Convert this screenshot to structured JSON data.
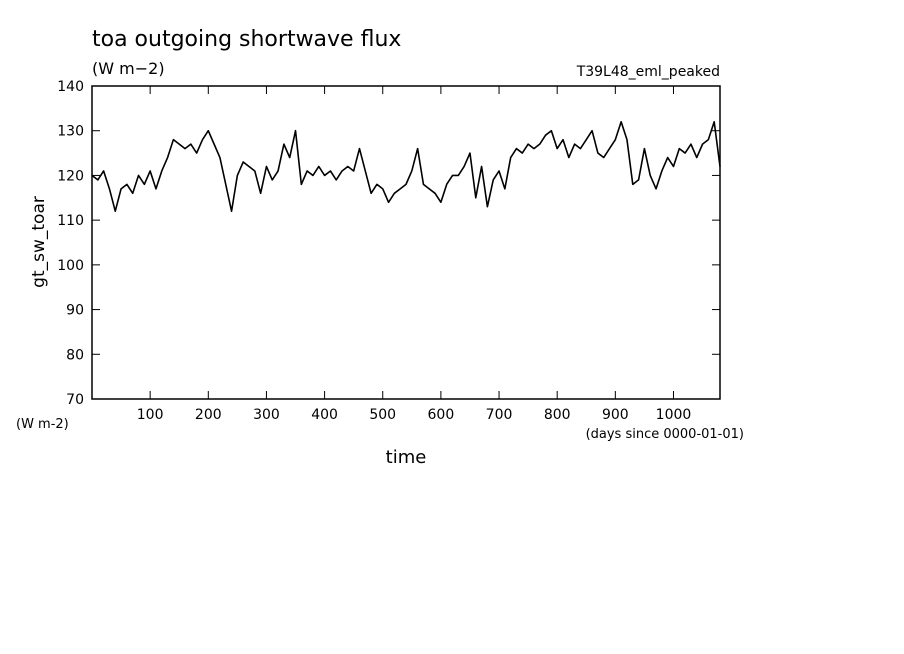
{
  "chart_data": {
    "type": "line",
    "title": "toa outgoing shortwave flux",
    "subtitle": "(W m−2)",
    "annotation": "T39L48_eml_peaked",
    "y_label": "gt_sw_toar",
    "y_units": "(W m-2)",
    "x_label": "time",
    "x_units": "(days since 0000-01-01)",
    "x": [
      0,
      10,
      20,
      30,
      40,
      50,
      60,
      70,
      80,
      90,
      100,
      110,
      120,
      130,
      140,
      150,
      160,
      170,
      180,
      190,
      200,
      210,
      220,
      230,
      240,
      250,
      260,
      270,
      280,
      290,
      300,
      310,
      320,
      330,
      340,
      350,
      360,
      370,
      380,
      390,
      400,
      410,
      420,
      430,
      440,
      450,
      460,
      470,
      480,
      490,
      500,
      510,
      520,
      530,
      540,
      550,
      560,
      570,
      580,
      590,
      600,
      610,
      620,
      630,
      640,
      650,
      660,
      670,
      680,
      690,
      700,
      710,
      720,
      730,
      740,
      750,
      760,
      770,
      780,
      790,
      800,
      810,
      820,
      830,
      840,
      850,
      860,
      870,
      880,
      890,
      900,
      910,
      920,
      930,
      940,
      950,
      960,
      970,
      980,
      990,
      1000,
      1010,
      1020,
      1030,
      1040,
      1050,
      1060,
      1070,
      1080
    ],
    "series": [
      {
        "name": "gt_sw_toar",
        "color": "#000000",
        "values": [
          120,
          119,
          121,
          117,
          112,
          117,
          118,
          116,
          120,
          118,
          121,
          117,
          121,
          124,
          128,
          127,
          126,
          127,
          125,
          128,
          130,
          127,
          124,
          118,
          112,
          120,
          123,
          122,
          121,
          116,
          122,
          119,
          121,
          127,
          124,
          130,
          118,
          121,
          120,
          122,
          120,
          121,
          119,
          121,
          122,
          121,
          126,
          121,
          116,
          118,
          117,
          114,
          116,
          117,
          118,
          121,
          126,
          118,
          117,
          116,
          114,
          118,
          120,
          120,
          122,
          125,
          115,
          122,
          113,
          119,
          121,
          117,
          124,
          126,
          125,
          127,
          126,
          127,
          129,
          130,
          126,
          128,
          124,
          127,
          126,
          128,
          130,
          125,
          124,
          126,
          128,
          132,
          128,
          118,
          119,
          126,
          120,
          117,
          121,
          124,
          122,
          126,
          125,
          127,
          124,
          127,
          128,
          132,
          122
        ]
      }
    ],
    "xlim": [
      0,
      1080
    ],
    "ylim": [
      70,
      140
    ],
    "xticks": [
      100,
      200,
      300,
      400,
      500,
      600,
      700,
      800,
      900,
      1000
    ],
    "yticks": [
      70,
      80,
      90,
      100,
      110,
      120,
      130,
      140
    ]
  }
}
